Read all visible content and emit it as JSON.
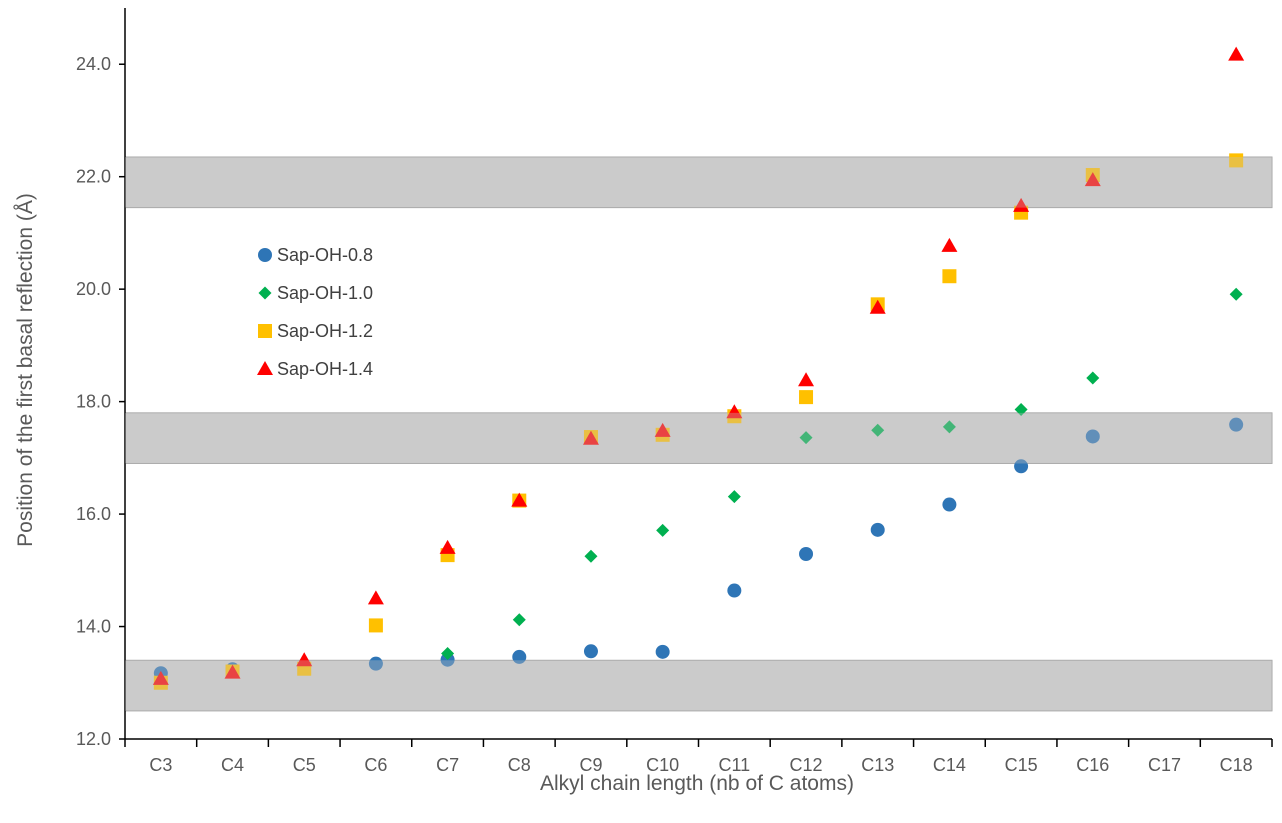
{
  "chart_data": {
    "type": "scatter",
    "title": "",
    "xlabel": "Alkyl chain length (nb of C atoms)",
    "ylabel": "Position of the first basal reflection (Å)",
    "categories": [
      "C3",
      "C4",
      "C5",
      "C6",
      "C7",
      "C8",
      "C9",
      "C10",
      "C11",
      "C12",
      "C13",
      "C14",
      "C15",
      "C16",
      "C17",
      "C18"
    ],
    "ylim": [
      12.0,
      25.0
    ],
    "yticks": [
      12.0,
      14.0,
      16.0,
      18.0,
      20.0,
      22.0,
      24.0
    ],
    "ytick_labels": [
      "12.0",
      "14.0",
      "16.0",
      "18.0",
      "20.0",
      "22.0",
      "24.0"
    ],
    "grid": false,
    "legend_position": "left-middle",
    "bands": [
      {
        "ymin": 12.5,
        "ymax": 13.4,
        "color": "#bfbfbf"
      },
      {
        "ymin": 16.9,
        "ymax": 17.8,
        "color": "#bfbfbf"
      },
      {
        "ymin": 21.45,
        "ymax": 22.35,
        "color": "#bfbfbf"
      }
    ],
    "series": [
      {
        "name": "Sap-OH-0.8",
        "marker": "circle",
        "color": "#2e75b6",
        "points": [
          [
            "C3",
            13.17
          ],
          [
            "C4",
            13.24
          ],
          [
            "C6",
            13.34
          ],
          [
            "C7",
            13.41
          ],
          [
            "C8",
            13.46
          ],
          [
            "C9",
            13.56
          ],
          [
            "C10",
            13.55
          ],
          [
            "C11",
            14.64
          ],
          [
            "C12",
            15.29
          ],
          [
            "C13",
            15.72
          ],
          [
            "C14",
            16.17
          ],
          [
            "C15",
            16.85
          ],
          [
            "C16",
            17.38
          ],
          [
            "C18",
            17.59
          ]
        ]
      },
      {
        "name": "Sap-OH-1.0",
        "marker": "diamond",
        "color": "#00b050",
        "points": [
          [
            "C7",
            13.52
          ],
          [
            "C8",
            14.12
          ],
          [
            "C9",
            15.25
          ],
          [
            "C10",
            15.71
          ],
          [
            "C11",
            16.31
          ],
          [
            "C12",
            17.36
          ],
          [
            "C13",
            17.49
          ],
          [
            "C14",
            17.55
          ],
          [
            "C15",
            17.86
          ],
          [
            "C16",
            18.42
          ],
          [
            "C18",
            19.91
          ]
        ]
      },
      {
        "name": "Sap-OH-1.2",
        "marker": "square",
        "color": "#ffc000",
        "points": [
          [
            "C3",
            13.0
          ],
          [
            "C4",
            13.2
          ],
          [
            "C5",
            13.25
          ],
          [
            "C6",
            14.02
          ],
          [
            "C7",
            15.27
          ],
          [
            "C8",
            16.24
          ],
          [
            "C9",
            17.37
          ],
          [
            "C10",
            17.41
          ],
          [
            "C11",
            17.74
          ],
          [
            "C12",
            18.08
          ],
          [
            "C13",
            19.73
          ],
          [
            "C14",
            20.23
          ],
          [
            "C15",
            21.36
          ],
          [
            "C16",
            22.03
          ],
          [
            "C18",
            22.29
          ]
        ]
      },
      {
        "name": "Sap-OH-1.4",
        "marker": "triangle",
        "color": "#ff0000",
        "points": [
          [
            "C3",
            13.07
          ],
          [
            "C4",
            13.18
          ],
          [
            "C5",
            13.4
          ],
          [
            "C6",
            14.5
          ],
          [
            "C7",
            15.4
          ],
          [
            "C8",
            16.24
          ],
          [
            "C9",
            17.34
          ],
          [
            "C10",
            17.48
          ],
          [
            "C11",
            17.81
          ],
          [
            "C12",
            18.38
          ],
          [
            "C13",
            19.67
          ],
          [
            "C14",
            20.77
          ],
          [
            "C15",
            21.48
          ],
          [
            "C16",
            21.94
          ],
          [
            "C18",
            24.17
          ]
        ]
      }
    ]
  }
}
